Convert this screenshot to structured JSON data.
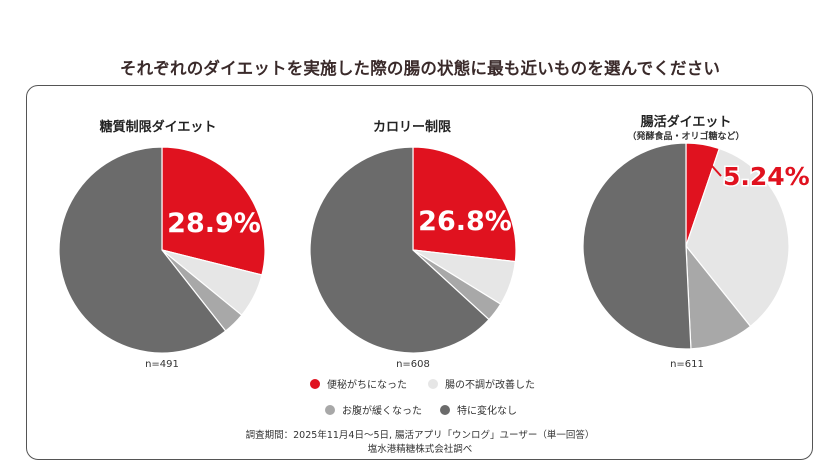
{
  "title": "それぞれのダイエットを実施した際の腸の状態に最も近いものを選んでください",
  "chart_data": [
    {
      "type": "pie",
      "title": "糖質制限ダイエット",
      "subtitle": "",
      "n_label": "n=491",
      "highlight_label": "28.9%",
      "categories": [
        "便秘がちになった",
        "腸の不調が改善した",
        "お腹が緩くなった",
        "特に変化なし"
      ],
      "values": [
        28.9,
        7.0,
        3.5,
        60.6
      ],
      "colors": [
        "#e0121f",
        "#e6e6e6",
        "#a8a8a8",
        "#6b6b6b"
      ]
    },
    {
      "type": "pie",
      "title": "カロリー制限",
      "subtitle": "",
      "n_label": "n=608",
      "highlight_label": "26.8%",
      "categories": [
        "便秘がちになった",
        "腸の不調が改善した",
        "お腹が緩くなった",
        "特に変化なし"
      ],
      "values": [
        26.8,
        7.0,
        3.0,
        63.2
      ],
      "colors": [
        "#e0121f",
        "#e6e6e6",
        "#a8a8a8",
        "#6b6b6b"
      ]
    },
    {
      "type": "pie",
      "title": "腸活ダイエット",
      "subtitle": "（発酵食品・オリゴ糖など）",
      "n_label": "n=611",
      "highlight_label": "5.24%",
      "categories": [
        "便秘がちになった",
        "腸の不調が改善した",
        "お腹が緩くなった",
        "特に変化なし"
      ],
      "values": [
        5.24,
        34.0,
        10.0,
        50.76
      ],
      "colors": [
        "#e0121f",
        "#e6e6e6",
        "#a8a8a8",
        "#6b6b6b"
      ]
    }
  ],
  "legend": [
    {
      "label": "便秘がちになった",
      "color": "#e0121f"
    },
    {
      "label": "腸の不調が改善した",
      "color": "#e6e6e6"
    },
    {
      "label": "お腹が緩くなった",
      "color": "#a8a8a8"
    },
    {
      "label": "特に変化なし",
      "color": "#6b6b6b"
    }
  ],
  "footnote": {
    "line1": "調査期間：2025年11月4日〜5日, 腸活アプリ「ウンログ」ユーザー（単一回答）",
    "line2": "塩水港精糖株式会社調べ"
  }
}
